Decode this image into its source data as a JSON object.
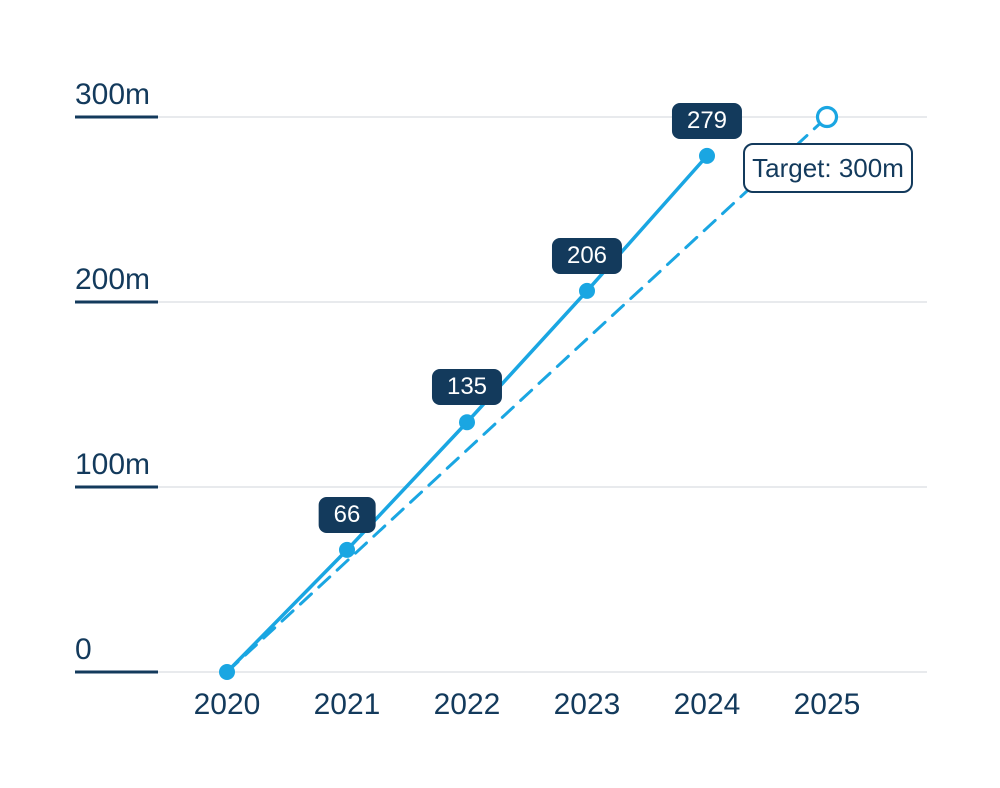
{
  "chart_data": {
    "type": "line",
    "title": "",
    "xlabel": "",
    "ylabel": "",
    "xlim": [
      2020,
      2025
    ],
    "ylim": [
      0,
      300
    ],
    "grid": true,
    "legend_position": "none",
    "x_ticks": [
      {
        "x": 2020,
        "label": "2020"
      },
      {
        "x": 2021,
        "label": "2021"
      },
      {
        "x": 2022,
        "label": "2022"
      },
      {
        "x": 2023,
        "label": "2023"
      },
      {
        "x": 2024,
        "label": "2024"
      },
      {
        "x": 2025,
        "label": "2025"
      }
    ],
    "y_ticks": [
      {
        "value": 0,
        "label": "0"
      },
      {
        "value": 100,
        "label": "100m"
      },
      {
        "value": 200,
        "label": "200m"
      },
      {
        "value": 300,
        "label": "300m"
      }
    ],
    "series": [
      {
        "name": "actual",
        "style": "solid",
        "marker": "filled-circle",
        "x": [
          2020,
          2021,
          2022,
          2023,
          2024
        ],
        "values": [
          0,
          66,
          135,
          206,
          279
        ],
        "point_labels": [
          "",
          "66",
          "135",
          "206",
          "279"
        ]
      },
      {
        "name": "target-trajectory",
        "style": "dashed",
        "marker": "open-circle-at-end",
        "x": [
          2020,
          2025
        ],
        "values": [
          0,
          300
        ]
      }
    ],
    "annotation": {
      "label": "Target: 300m",
      "x": 2025,
      "value": 300
    }
  },
  "colors": {
    "navy": "#133a5c",
    "blue": "#1aa6e2",
    "gridline": "#e0e3e7",
    "badge_background": "#133a5c",
    "badge_text": "#ffffff",
    "background": "#ffffff"
  }
}
